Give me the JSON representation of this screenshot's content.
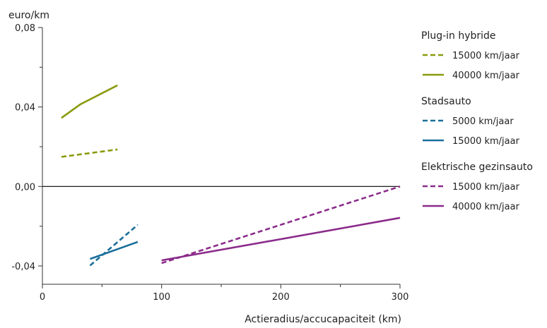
{
  "chart_data": {
    "type": "line",
    "title": "",
    "ylabel": "euro/km",
    "xlabel": "Actieradius/accucapaciteit (km)",
    "xlim": [
      0,
      300
    ],
    "ylim": [
      -0.04,
      0.08
    ],
    "x_ticks": [
      0,
      100,
      200,
      300
    ],
    "x_tick_labels": [
      "0",
      "100",
      "200",
      "300"
    ],
    "x_minor_ticks": [
      50,
      150,
      250
    ],
    "y_ticks": [
      -0.04,
      0.0,
      0.04,
      0.08
    ],
    "y_tick_labels": [
      "-0,04",
      "0,00",
      "0,04",
      "0,08"
    ],
    "y_minor_ticks": [
      -0.02,
      0.02,
      0.06
    ],
    "zero_line": true,
    "grid": false,
    "legend_position": "right",
    "groups": [
      {
        "title": "Plug-in hybride",
        "series": [
          {
            "name": "15000 km/jaar",
            "style": "dashed",
            "color": "#8a9a0b",
            "points": [
              [
                16,
                0.0149
              ],
              [
                63,
                0.0186
              ]
            ]
          },
          {
            "name": "40000 km/jaar",
            "style": "solid",
            "color": "#8a9a0b",
            "points": [
              [
                16,
                0.0345
              ],
              [
                32,
                0.0414
              ],
              [
                63,
                0.0509
              ]
            ]
          }
        ]
      },
      {
        "title": "Stadsauto",
        "series": [
          {
            "name": "5000 km/jaar",
            "style": "dashed",
            "color": "#1a6e9a",
            "points": [
              [
                40,
                -0.0398
              ],
              [
                80,
                -0.0193
              ]
            ]
          },
          {
            "name": "15000 km/jaar",
            "style": "solid",
            "color": "#1a6e9a",
            "points": [
              [
                40,
                -0.0365
              ],
              [
                80,
                -0.0279
              ]
            ]
          }
        ]
      },
      {
        "title": "Elektrische gezinsauto",
        "series": [
          {
            "name": "15000 km/jaar",
            "style": "dashed",
            "color": "#8b2b8a",
            "points": [
              [
                100,
                -0.0386
              ],
              [
                300,
                0.0
              ]
            ]
          },
          {
            "name": "40000 km/jaar",
            "style": "solid",
            "color": "#8b2b8a",
            "points": [
              [
                100,
                -0.0372
              ],
              [
                300,
                -0.0158
              ]
            ]
          }
        ]
      }
    ]
  }
}
